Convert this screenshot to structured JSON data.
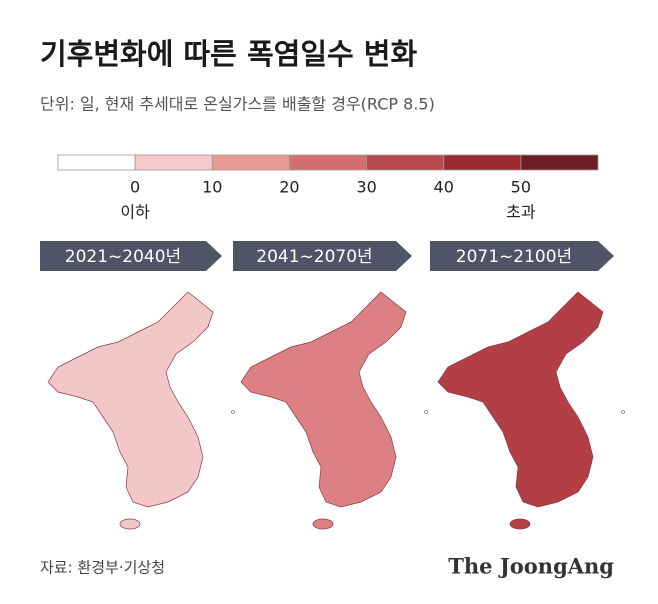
{
  "header": {
    "title": "기후변화에 따른 폭염일수 변화",
    "subtitle": "단위: 일, 현재 추세대로 온실가스를 배출할 경우(RCP 8.5)"
  },
  "legend": {
    "colors": [
      "#ffffff",
      "#f6c9cc",
      "#e69a91",
      "#d2706f",
      "#b84a4d",
      "#9a2b33",
      "#6e1d24"
    ],
    "ticks": [
      0,
      10,
      20,
      30,
      40,
      50
    ],
    "below_label": "이하",
    "above_label": "초과"
  },
  "panels": [
    {
      "label": "2021~2040년",
      "color": "#f3c6c8"
    },
    {
      "label": "2041~2070년",
      "color": "#dc8084"
    },
    {
      "label": "2071~2100년",
      "color": "#b33f46"
    }
  ],
  "footer": {
    "source": "자료: 환경부·기상청",
    "brand": "The JoongAng"
  }
}
